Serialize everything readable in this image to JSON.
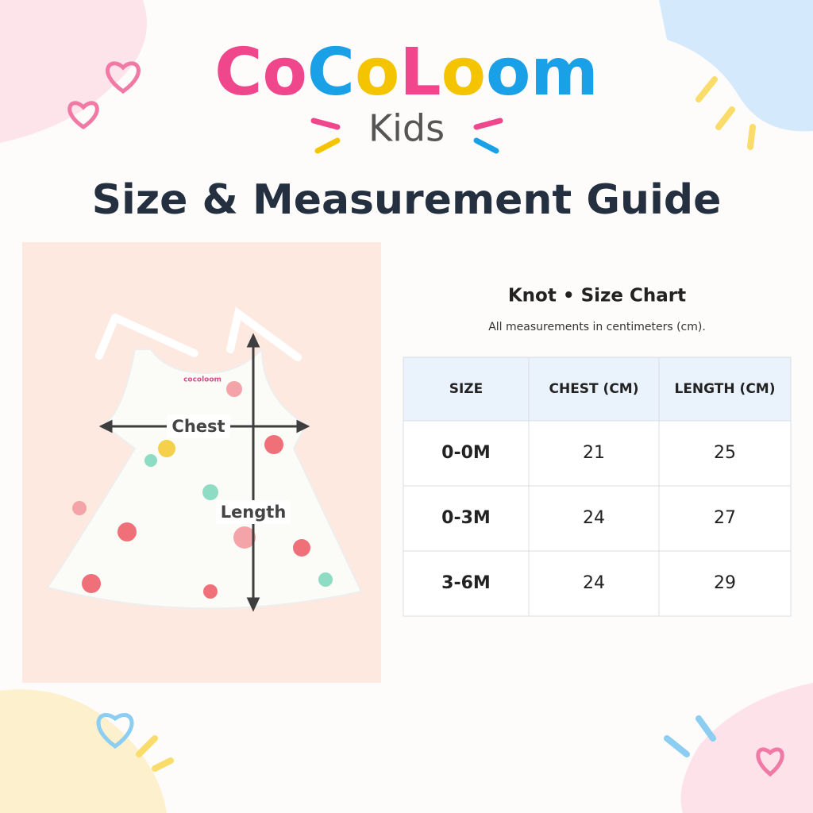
{
  "brand": {
    "name": "CoCoLoom",
    "sub": "Kids"
  },
  "title": "Size & Measurement Guide",
  "image": {
    "logo": "cocoloom",
    "chest_label": "Chest",
    "length_label": "Length"
  },
  "table": {
    "title": "Knot • Size Chart",
    "note": "All measurements in centimeters (cm).",
    "header": [
      "SIZE",
      "CHEST (CM)",
      "LENGTH (CM)"
    ],
    "rows": [
      [
        "0-0M",
        21,
        25
      ],
      [
        "0-3M",
        24,
        27
      ],
      [
        "3-6M",
        24,
        29
      ]
    ]
  }
}
